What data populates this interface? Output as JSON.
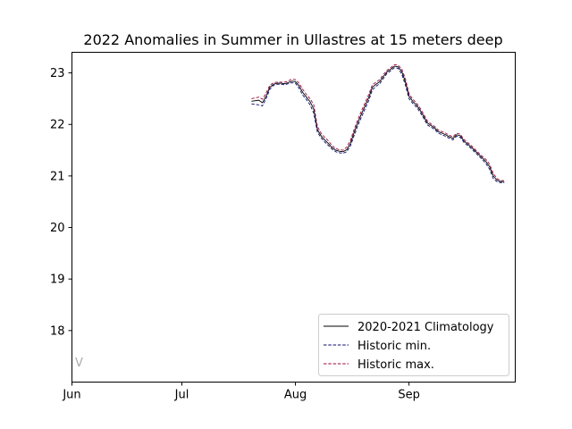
{
  "chart_data": {
    "type": "line",
    "title": "2022 Anomalies in Summer in Ullastres at 15 meters deep",
    "xlabel": "",
    "ylabel": "",
    "x_range": [
      "2022-06-01",
      "2022-09-30"
    ],
    "ylim": [
      17.0,
      23.4
    ],
    "x_ticks": [
      {
        "date": "2022-06-01",
        "label": "Jun"
      },
      {
        "date": "2022-07-01",
        "label": "Jul"
      },
      {
        "date": "2022-08-01",
        "label": "Aug"
      },
      {
        "date": "2022-09-01",
        "label": "Sep"
      }
    ],
    "y_ticks": [
      18,
      19,
      20,
      21,
      22,
      23
    ],
    "grid": false,
    "legend_position": "lower-right",
    "corner_mark": "V",
    "series": [
      {
        "name": "2020-2021 Climatology",
        "color": "#000000",
        "style": "solid",
        "points": [
          [
            "2022-07-20",
            22.45
          ],
          [
            "2022-07-22",
            22.47
          ],
          [
            "2022-07-23",
            22.42
          ],
          [
            "2022-07-24",
            22.55
          ],
          [
            "2022-07-25",
            22.72
          ],
          [
            "2022-07-26",
            22.78
          ],
          [
            "2022-07-27",
            22.8
          ],
          [
            "2022-07-28",
            22.8
          ],
          [
            "2022-07-29",
            22.79
          ],
          [
            "2022-07-30",
            22.81
          ],
          [
            "2022-07-31",
            22.84
          ],
          [
            "2022-08-01",
            22.83
          ],
          [
            "2022-08-02",
            22.75
          ],
          [
            "2022-08-03",
            22.62
          ],
          [
            "2022-08-04",
            22.53
          ],
          [
            "2022-08-05",
            22.44
          ],
          [
            "2022-08-06",
            22.3
          ],
          [
            "2022-08-07",
            21.9
          ],
          [
            "2022-08-08",
            21.78
          ],
          [
            "2022-08-09",
            21.7
          ],
          [
            "2022-08-10",
            21.63
          ],
          [
            "2022-08-11",
            21.55
          ],
          [
            "2022-08-12",
            21.5
          ],
          [
            "2022-08-13",
            21.48
          ],
          [
            "2022-08-14",
            21.47
          ],
          [
            "2022-08-15",
            21.51
          ],
          [
            "2022-08-16",
            21.63
          ],
          [
            "2022-08-17",
            21.84
          ],
          [
            "2022-08-18",
            22.03
          ],
          [
            "2022-08-19",
            22.2
          ],
          [
            "2022-08-20",
            22.36
          ],
          [
            "2022-08-21",
            22.52
          ],
          [
            "2022-08-22",
            22.72
          ],
          [
            "2022-08-23",
            22.78
          ],
          [
            "2022-08-24",
            22.83
          ],
          [
            "2022-08-25",
            22.93
          ],
          [
            "2022-08-26",
            23.02
          ],
          [
            "2022-08-27",
            23.07
          ],
          [
            "2022-08-28",
            23.13
          ],
          [
            "2022-08-29",
            23.12
          ],
          [
            "2022-08-30",
            23.03
          ],
          [
            "2022-08-31",
            22.83
          ],
          [
            "2022-09-01",
            22.55
          ],
          [
            "2022-09-02",
            22.45
          ],
          [
            "2022-09-03",
            22.38
          ],
          [
            "2022-09-04",
            22.28
          ],
          [
            "2022-09-05",
            22.16
          ],
          [
            "2022-09-06",
            22.03
          ],
          [
            "2022-09-07",
            21.98
          ],
          [
            "2022-09-08",
            21.93
          ],
          [
            "2022-09-09",
            21.86
          ],
          [
            "2022-09-10",
            21.83
          ],
          [
            "2022-09-11",
            21.8
          ],
          [
            "2022-09-12",
            21.76
          ],
          [
            "2022-09-13",
            21.73
          ],
          [
            "2022-09-14",
            21.8
          ],
          [
            "2022-09-15",
            21.78
          ],
          [
            "2022-09-16",
            21.68
          ],
          [
            "2022-09-17",
            21.62
          ],
          [
            "2022-09-18",
            21.56
          ],
          [
            "2022-09-19",
            21.49
          ],
          [
            "2022-09-20",
            21.42
          ],
          [
            "2022-09-21",
            21.35
          ],
          [
            "2022-09-22",
            21.28
          ],
          [
            "2022-09-23",
            21.18
          ],
          [
            "2022-09-24",
            21.0
          ],
          [
            "2022-09-25",
            20.92
          ],
          [
            "2022-09-26",
            20.89
          ],
          [
            "2022-09-27",
            20.89
          ]
        ]
      },
      {
        "name": "Historic min.",
        "color": "#0b0b6e",
        "style": "dashed",
        "points": [
          [
            "2022-07-20",
            22.4
          ],
          [
            "2022-07-22",
            22.38
          ],
          [
            "2022-07-23",
            22.36
          ],
          [
            "2022-07-24",
            22.5
          ],
          [
            "2022-07-25",
            22.68
          ],
          [
            "2022-07-26",
            22.76
          ],
          [
            "2022-07-27",
            22.78
          ],
          [
            "2022-07-28",
            22.78
          ],
          [
            "2022-07-29",
            22.77
          ],
          [
            "2022-07-30",
            22.79
          ],
          [
            "2022-07-31",
            22.81
          ],
          [
            "2022-08-01",
            22.8
          ],
          [
            "2022-08-02",
            22.7
          ],
          [
            "2022-08-03",
            22.57
          ],
          [
            "2022-08-04",
            22.48
          ],
          [
            "2022-08-05",
            22.38
          ],
          [
            "2022-08-06",
            22.22
          ],
          [
            "2022-08-07",
            21.85
          ],
          [
            "2022-08-08",
            21.74
          ],
          [
            "2022-08-09",
            21.66
          ],
          [
            "2022-08-10",
            21.59
          ],
          [
            "2022-08-11",
            21.52
          ],
          [
            "2022-08-12",
            21.47
          ],
          [
            "2022-08-13",
            21.45
          ],
          [
            "2022-08-14",
            21.44
          ],
          [
            "2022-08-15",
            21.47
          ],
          [
            "2022-08-16",
            21.58
          ],
          [
            "2022-08-17",
            21.78
          ],
          [
            "2022-08-18",
            21.97
          ],
          [
            "2022-08-19",
            22.14
          ],
          [
            "2022-08-20",
            22.3
          ],
          [
            "2022-08-21",
            22.46
          ],
          [
            "2022-08-22",
            22.67
          ],
          [
            "2022-08-23",
            22.74
          ],
          [
            "2022-08-24",
            22.79
          ],
          [
            "2022-08-25",
            22.89
          ],
          [
            "2022-08-26",
            22.99
          ],
          [
            "2022-08-27",
            23.04
          ],
          [
            "2022-08-28",
            23.1
          ],
          [
            "2022-08-29",
            23.09
          ],
          [
            "2022-08-30",
            22.98
          ],
          [
            "2022-08-31",
            22.77
          ],
          [
            "2022-09-01",
            22.5
          ],
          [
            "2022-09-02",
            22.41
          ],
          [
            "2022-09-03",
            22.34
          ],
          [
            "2022-09-04",
            22.24
          ],
          [
            "2022-09-05",
            22.12
          ],
          [
            "2022-09-06",
            21.99
          ],
          [
            "2022-09-07",
            21.95
          ],
          [
            "2022-09-08",
            21.9
          ],
          [
            "2022-09-09",
            21.83
          ],
          [
            "2022-09-10",
            21.8
          ],
          [
            "2022-09-11",
            21.77
          ],
          [
            "2022-09-12",
            21.73
          ],
          [
            "2022-09-13",
            21.7
          ],
          [
            "2022-09-14",
            21.77
          ],
          [
            "2022-09-15",
            21.75
          ],
          [
            "2022-09-16",
            21.65
          ],
          [
            "2022-09-17",
            21.59
          ],
          [
            "2022-09-18",
            21.53
          ],
          [
            "2022-09-19",
            21.46
          ],
          [
            "2022-09-20",
            21.39
          ],
          [
            "2022-09-21",
            21.32
          ],
          [
            "2022-09-22",
            21.24
          ],
          [
            "2022-09-23",
            21.13
          ],
          [
            "2022-09-24",
            20.95
          ],
          [
            "2022-09-25",
            20.89
          ],
          [
            "2022-09-26",
            20.87
          ],
          [
            "2022-09-27",
            20.87
          ]
        ]
      },
      {
        "name": "Historic max.",
        "color": "#9b0a3c",
        "style": "dashed",
        "points": [
          [
            "2022-07-20",
            22.5
          ],
          [
            "2022-07-22",
            22.53
          ],
          [
            "2022-07-23",
            22.49
          ],
          [
            "2022-07-24",
            22.61
          ],
          [
            "2022-07-25",
            22.76
          ],
          [
            "2022-07-26",
            22.81
          ],
          [
            "2022-07-27",
            22.82
          ],
          [
            "2022-07-28",
            22.82
          ],
          [
            "2022-07-29",
            22.82
          ],
          [
            "2022-07-30",
            22.84
          ],
          [
            "2022-07-31",
            22.88
          ],
          [
            "2022-08-01",
            22.87
          ],
          [
            "2022-08-02",
            22.8
          ],
          [
            "2022-08-03",
            22.68
          ],
          [
            "2022-08-04",
            22.58
          ],
          [
            "2022-08-05",
            22.5
          ],
          [
            "2022-08-06",
            22.38
          ],
          [
            "2022-08-07",
            21.96
          ],
          [
            "2022-08-08",
            21.83
          ],
          [
            "2022-08-09",
            21.75
          ],
          [
            "2022-08-10",
            21.68
          ],
          [
            "2022-08-11",
            21.59
          ],
          [
            "2022-08-12",
            21.53
          ],
          [
            "2022-08-13",
            21.51
          ],
          [
            "2022-08-14",
            21.5
          ],
          [
            "2022-08-15",
            21.56
          ],
          [
            "2022-08-16",
            21.69
          ],
          [
            "2022-08-17",
            21.9
          ],
          [
            "2022-08-18",
            22.09
          ],
          [
            "2022-08-19",
            22.26
          ],
          [
            "2022-08-20",
            22.42
          ],
          [
            "2022-08-21",
            22.58
          ],
          [
            "2022-08-22",
            22.77
          ],
          [
            "2022-08-23",
            22.82
          ],
          [
            "2022-08-24",
            22.87
          ],
          [
            "2022-08-25",
            22.97
          ],
          [
            "2022-08-26",
            23.05
          ],
          [
            "2022-08-27",
            23.1
          ],
          [
            "2022-08-28",
            23.16
          ],
          [
            "2022-08-29",
            23.15
          ],
          [
            "2022-08-30",
            23.08
          ],
          [
            "2022-08-31",
            22.89
          ],
          [
            "2022-09-01",
            22.6
          ],
          [
            "2022-09-02",
            22.49
          ],
          [
            "2022-09-03",
            22.42
          ],
          [
            "2022-09-04",
            22.32
          ],
          [
            "2022-09-05",
            22.2
          ],
          [
            "2022-09-06",
            22.07
          ],
          [
            "2022-09-07",
            22.01
          ],
          [
            "2022-09-08",
            21.96
          ],
          [
            "2022-09-09",
            21.89
          ],
          [
            "2022-09-10",
            21.86
          ],
          [
            "2022-09-11",
            21.83
          ],
          [
            "2022-09-12",
            21.79
          ],
          [
            "2022-09-13",
            21.76
          ],
          [
            "2022-09-14",
            21.83
          ],
          [
            "2022-09-15",
            21.81
          ],
          [
            "2022-09-16",
            21.71
          ],
          [
            "2022-09-17",
            21.65
          ],
          [
            "2022-09-18",
            21.59
          ],
          [
            "2022-09-19",
            21.52
          ],
          [
            "2022-09-20",
            21.45
          ],
          [
            "2022-09-21",
            21.38
          ],
          [
            "2022-09-22",
            21.32
          ],
          [
            "2022-09-23",
            21.23
          ],
          [
            "2022-09-24",
            21.05
          ],
          [
            "2022-09-25",
            20.95
          ],
          [
            "2022-09-26",
            20.91
          ],
          [
            "2022-09-27",
            20.91
          ]
        ]
      }
    ]
  }
}
